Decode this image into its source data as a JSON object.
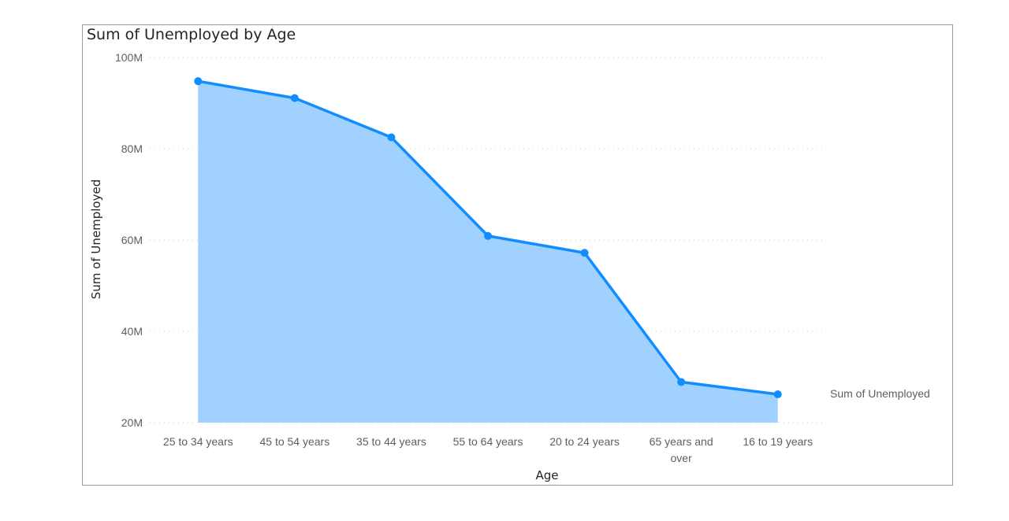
{
  "chart_data": {
    "type": "area",
    "title": "Sum of Unemployed by Age",
    "xlabel": "Age",
    "ylabel": "Sum of Unemployed",
    "categories": [
      "25 to 34 years",
      "45 to 54 years",
      "35 to 44 years",
      "55 to 64 years",
      "20 to 24 years",
      "65 years and over",
      "16 to 19 years"
    ],
    "series": [
      {
        "name": "Sum of Unemployed",
        "values": [
          94800000,
          91100000,
          82500000,
          60900000,
          57200000,
          28900000,
          26200000
        ]
      }
    ],
    "ylim": [
      20000000,
      100000000
    ],
    "yticks": [
      20000000,
      40000000,
      60000000,
      80000000,
      100000000
    ],
    "ytick_labels": [
      "20M",
      "40M",
      "60M",
      "80M",
      "100M"
    ],
    "grid": true,
    "legend_position": "right",
    "colors": {
      "line": "#118DFF",
      "fill": "#A0D1FF",
      "grid": "#c8c8c8"
    }
  }
}
